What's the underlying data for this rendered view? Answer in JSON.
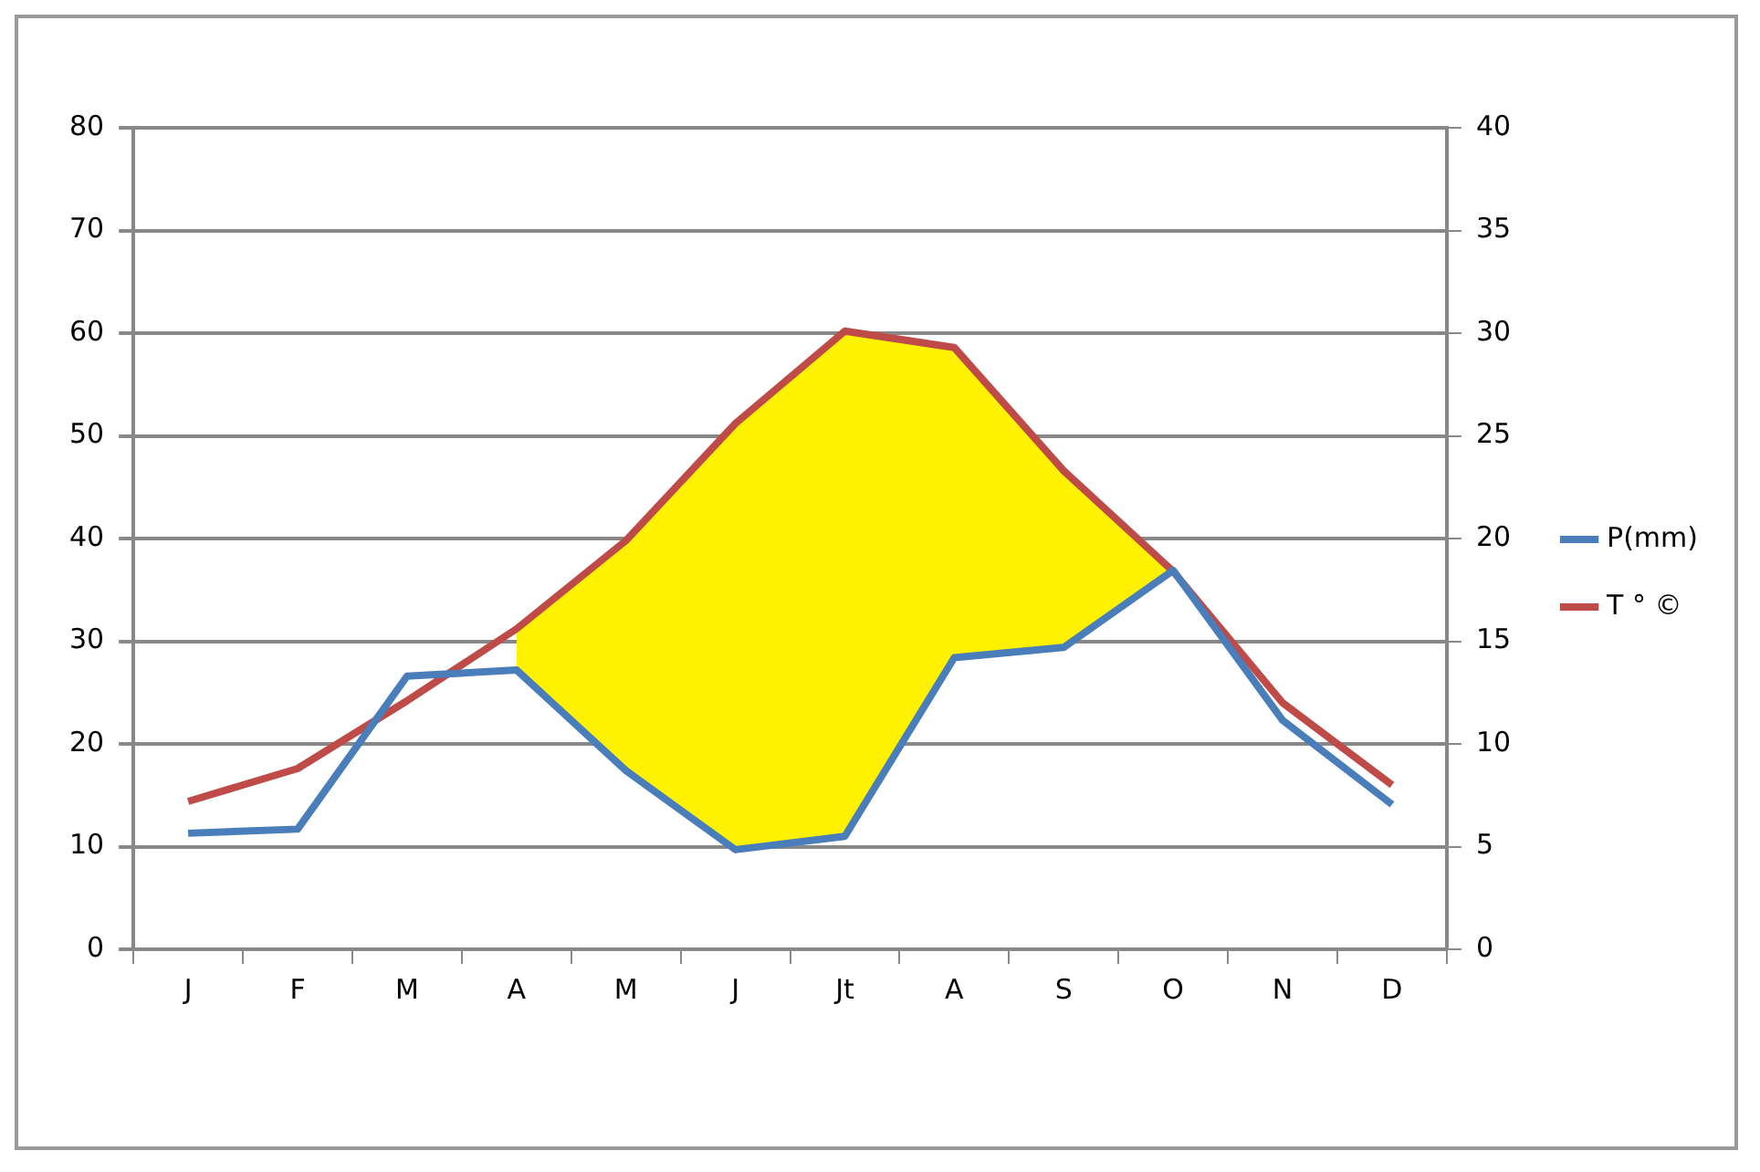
{
  "chart_data": {
    "type": "line",
    "categories": [
      "J",
      "F",
      "M",
      "A",
      "M",
      "J",
      "Jt",
      "A",
      "S",
      "O",
      "N",
      "D"
    ],
    "series": [
      {
        "name": "P(mm)",
        "color": "#4a7ebb",
        "values": [
          11.3,
          11.7,
          26.6,
          27.2,
          17.4,
          9.7,
          11,
          28.4,
          29.4,
          36.9,
          22.3,
          14.1
        ]
      },
      {
        "name": "T ° ©",
        "color": "#be4b48",
        "axis": "y2",
        "values": [
          7.2,
          8.8,
          12.1,
          15.6,
          19.9,
          25.6,
          30.1,
          29.3,
          23.3,
          18.4,
          12,
          8
        ],
        "lower": [
          null,
          null,
          null,
          13.6,
          8.7,
          4.9,
          5.5,
          14.2,
          14.7,
          18.4,
          null,
          null
        ],
        "upper": [
          null,
          null,
          null,
          15.6,
          19.9,
          25.6,
          30.1,
          29.3,
          23.3,
          18.4,
          null,
          null
        ]
      }
    ],
    "ylim": [
      0,
      80
    ],
    "yticks": [
      0,
      10,
      20,
      30,
      40,
      50,
      60,
      70,
      80
    ],
    "y2lim": [
      0,
      40
    ],
    "y2ticks": [
      0,
      5,
      10,
      15,
      20,
      25,
      30,
      35,
      40
    ],
    "grid": "y",
    "legend": "right"
  }
}
